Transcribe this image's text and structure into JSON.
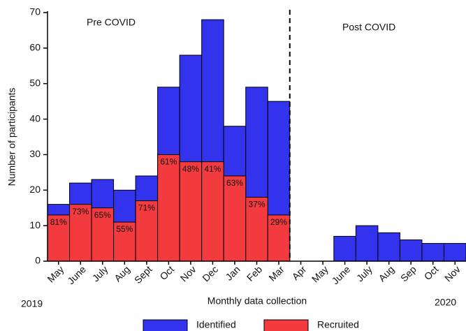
{
  "chart_data": {
    "type": "bar",
    "y_label": "Number of participants",
    "x_label": "Monthly data collection",
    "annotations": [
      "Pre COVID",
      "Post COVID",
      "2019",
      "2020"
    ],
    "categories": [
      "May",
      "June",
      "July",
      "Aug",
      "Sept",
      "Oct",
      "Nov",
      "Dec",
      "Jan",
      "Feb",
      "Mar",
      "Apr",
      "May",
      "June",
      "July",
      "Aug",
      "Sep",
      "Oct",
      "Nov"
    ],
    "series": [
      {
        "name": "Identified",
        "color": "#3333ee",
        "values": [
          16,
          22,
          23,
          20,
          24,
          49,
          58,
          68,
          38,
          49,
          45,
          0,
          0,
          7,
          10,
          8,
          6,
          5,
          5
        ]
      },
      {
        "name": "Recruited",
        "color": "#f23a3f",
        "values": [
          13,
          16,
          15,
          11,
          17,
          30,
          28,
          28,
          24,
          18,
          13,
          null,
          null,
          null,
          null,
          null,
          null,
          null,
          null
        ]
      }
    ],
    "recruited_percent_labels": [
      "81%",
      "73%",
      "65%",
      "55%",
      "71%",
      "61%",
      "48%",
      "41%",
      "63%",
      "37%",
      "29%"
    ],
    "ylim": [
      0,
      70
    ],
    "yticks": [
      0,
      10,
      20,
      30,
      40,
      50,
      60,
      70
    ]
  }
}
